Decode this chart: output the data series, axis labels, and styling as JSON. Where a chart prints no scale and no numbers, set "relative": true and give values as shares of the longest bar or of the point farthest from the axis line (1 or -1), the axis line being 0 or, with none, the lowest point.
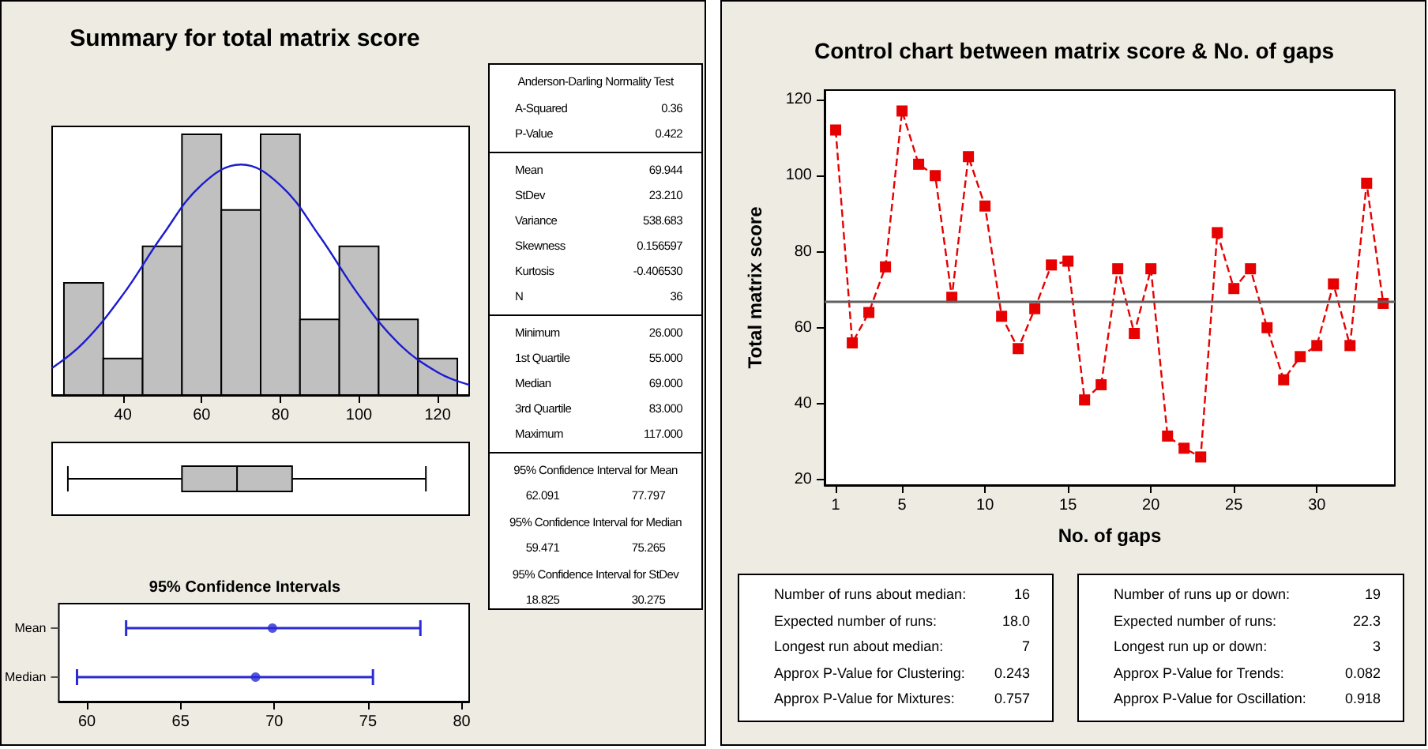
{
  "chart_data": [
    {
      "type": "histogram",
      "title": "Summary for total matrix score",
      "relative": true,
      "bins": [
        25,
        35,
        45,
        55,
        65,
        75,
        85,
        95,
        105,
        115,
        125
      ],
      "values": [
        0.43,
        0.14,
        0.57,
        1,
        0.71,
        1,
        0.29,
        0.57,
        0.29,
        0.14
      ],
      "color": "#c0c0c0",
      "series": [
        {
          "type": "line",
          "color": "#1c1cd0",
          "marker": "none",
          "x": [
            22,
            30,
            40,
            50,
            60,
            70,
            80,
            90,
            100,
            110,
            120,
            128
          ],
          "values": [
            0.104,
            0.201,
            0.385,
            0.611,
            0.806,
            0.884,
            0.805,
            0.609,
            0.382,
            0.199,
            0.087,
            0.039
          ]
        }
      ],
      "xlim": [
        22,
        128
      ],
      "xticks": [
        40,
        60,
        80,
        100,
        120
      ],
      "grid": false
    },
    {
      "type": "box",
      "orientation": "horizontal",
      "categories": [
        null
      ],
      "boxes": [
        {
          "low": 26,
          "q1": 55,
          "median": 69,
          "q3": 83,
          "high": 117
        }
      ],
      "color": "#c0c0c0",
      "xlim": [
        22,
        128
      ],
      "xticks": [
        40,
        60,
        80,
        100,
        120
      ],
      "tick_labels": false
    },
    {
      "type": "scatter",
      "title": "95% Confidence Intervals",
      "orientation": "horizontal",
      "categories": [
        "Mean",
        "Median"
      ],
      "values": [
        69.9,
        69.0
      ],
      "errors": [
        [
          62.091,
          77.797
        ],
        [
          59.471,
          75.265
        ]
      ],
      "color": "#2b2bd6",
      "marker": "circle",
      "xlim": [
        58.5,
        80.4
      ],
      "xticks": [
        60,
        65,
        70,
        75,
        80
      ],
      "grid": false
    },
    {
      "type": "other",
      "annotations": [
        "Anderson-Darling Normality Test",
        "A-Squared",
        "0.36",
        "P-Value",
        "0.422",
        "Mean",
        "69.944",
        "StDev",
        "23.210",
        "Variance",
        "538.683",
        "Skewness",
        "0.156597",
        "Kurtosis",
        "-0.406530",
        "N",
        "36",
        "Minimum",
        "26.000",
        "1st Quartile",
        "55.000",
        "Median",
        "69.000",
        "3rd Quartile",
        "83.000",
        "Maximum",
        "117.000",
        "95% Confidence Interval for Mean",
        "62.091",
        "77.797",
        "95% Confidence Interval for Median",
        "59.471",
        "75.265",
        "95% Confidence Interval for StDev",
        "18.825",
        "30.275"
      ]
    },
    {
      "type": "line",
      "title": "Control chart between matrix score & No. of gaps",
      "xlabel": "No. of gaps",
      "ylabel": "Total matrix score",
      "x": [
        1,
        2,
        3,
        4,
        5,
        6,
        7,
        8,
        9,
        10,
        11,
        12,
        13,
        14,
        15,
        16,
        17,
        18,
        19,
        20,
        21,
        22,
        23,
        24,
        25,
        26,
        27,
        28,
        29,
        30,
        31,
        32,
        33,
        34
      ],
      "values": [
        112,
        56,
        64,
        76,
        117,
        103,
        100,
        68,
        105,
        92,
        63,
        54.5,
        65,
        76.5,
        77.5,
        41,
        45,
        75.5,
        58.5,
        75.5,
        31.5,
        28.3,
        26,
        85,
        70.3,
        75.5,
        60,
        46.3,
        52.4,
        55.3,
        71.5,
        55.3,
        98,
        66.4
      ],
      "color": "#e60000",
      "marker": "square",
      "line_style": "dashed",
      "xlim": [
        0.33,
        34.7
      ],
      "xticks": [
        1,
        5,
        10,
        15,
        20,
        25,
        30
      ],
      "ylim": [
        18.6,
        122.5
      ],
      "yticks": [
        20,
        40,
        60,
        80,
        100,
        120
      ],
      "ref_lines": [
        {
          "axis": "y",
          "value": 67,
          "color": "#606060"
        }
      ],
      "grid": false
    },
    {
      "type": "other",
      "annotations": [
        "Number of runs about median:",
        "16",
        "Expected number of runs:",
        "18.0",
        "Longest run about median:",
        "7",
        "Approx P-Value for Clustering:",
        "0.243",
        "Approx P-Value for Mixtures:",
        "0.757"
      ]
    },
    {
      "type": "other",
      "annotations": [
        "Number of runs up or down:",
        "19",
        "Expected number of runs:",
        "22.3",
        "Longest run up or down:",
        "3",
        "Approx P-Value for Trends:",
        "0.082",
        "Approx P-Value for Oscillation:",
        "0.918"
      ]
    }
  ]
}
